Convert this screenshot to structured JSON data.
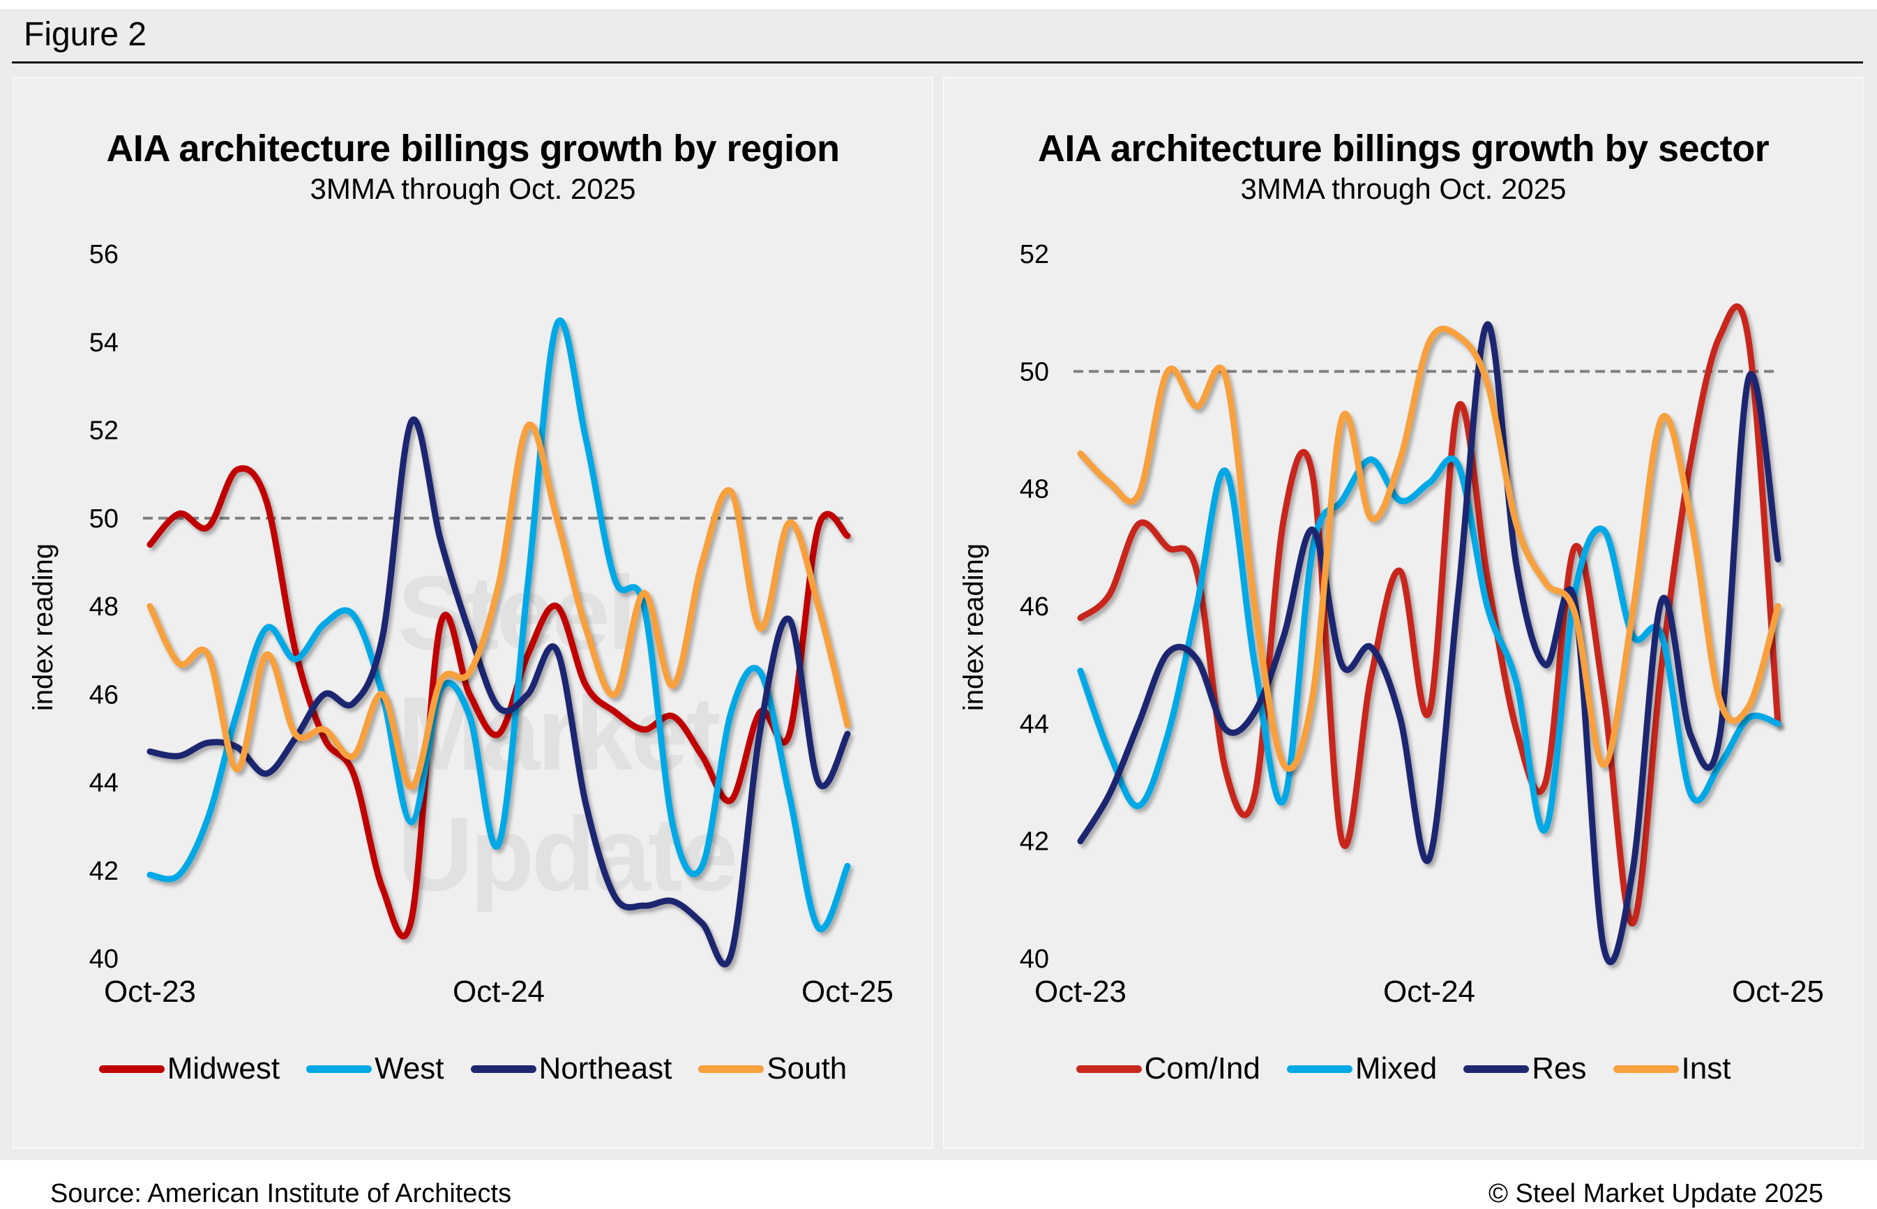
{
  "figure_label": "Figure 2",
  "source": "Source: American Institute of Architects",
  "copyright": "© Steel Market Update 2025",
  "watermark": "Steel Market Update",
  "chart_data": [
    {
      "type": "line",
      "title": "AIA architecture billings growth by region",
      "subtitle": "3MMA through Oct. 2025",
      "xlabel": "",
      "ylabel": "index reading",
      "ylim": [
        40,
        56
      ],
      "yticks": [
        40,
        42,
        44,
        46,
        48,
        50,
        52,
        54,
        56
      ],
      "x_tick_labels": [
        "Oct-23",
        "Oct-24",
        "Oct-25"
      ],
      "x": [
        "Oct-23",
        "Nov-23",
        "Dec-23",
        "Jan-24",
        "Feb-24",
        "Mar-24",
        "Apr-24",
        "May-24",
        "Jun-24",
        "Jul-24",
        "Aug-24",
        "Sep-24",
        "Oct-24",
        "Nov-24",
        "Dec-24",
        "Jan-25",
        "Feb-25",
        "Mar-25",
        "Apr-25",
        "May-25",
        "Jun-25",
        "Jul-25",
        "Aug-25",
        "Sep-25",
        "Oct-25"
      ],
      "reference_line": {
        "value": 50,
        "style": "dashed",
        "color": "#808080"
      },
      "grid": false,
      "legend_position": "bottom",
      "series": [
        {
          "name": "Midwest",
          "color": "#c00000",
          "values": [
            49.4,
            50.1,
            49.8,
            51.1,
            50.4,
            47.0,
            45.0,
            44.2,
            41.6,
            40.9,
            47.6,
            46.0,
            45.1,
            46.9,
            48.0,
            46.2,
            45.6,
            45.2,
            45.5,
            44.6,
            43.6,
            45.6,
            45.1,
            49.8,
            49.6
          ]
        },
        {
          "name": "West",
          "color": "#00a8e6",
          "values": [
            41.9,
            41.9,
            43.2,
            45.6,
            47.5,
            46.8,
            47.6,
            47.8,
            46.0,
            43.1,
            46.1,
            45.5,
            42.6,
            48.5,
            54.4,
            51.8,
            48.6,
            48.0,
            43.0,
            42.1,
            45.6,
            46.5,
            43.7,
            40.7,
            42.1
          ]
        },
        {
          "name": "Northeast",
          "color": "#1f286f",
          "values": [
            44.7,
            44.6,
            44.9,
            44.8,
            44.2,
            45.0,
            46.0,
            45.8,
            47.3,
            52.2,
            49.5,
            47.4,
            45.7,
            46.0,
            47.0,
            43.5,
            41.4,
            41.2,
            41.3,
            40.8,
            40.1,
            45.2,
            47.7,
            44.0,
            45.1
          ]
        },
        {
          "name": "South",
          "color": "#f7a03c",
          "values": [
            48.0,
            46.7,
            46.9,
            44.3,
            46.9,
            45.1,
            45.2,
            44.6,
            46.0,
            43.9,
            46.3,
            46.5,
            48.5,
            52.1,
            50.0,
            47.5,
            46.0,
            48.3,
            46.2,
            49.0,
            50.6,
            47.5,
            49.9,
            48.0,
            45.3
          ]
        }
      ]
    },
    {
      "type": "line",
      "title": "AIA architecture billings growth by sector",
      "subtitle": "3MMA through Oct. 2025",
      "xlabel": "",
      "ylabel": "index reading",
      "ylim": [
        40,
        52
      ],
      "yticks": [
        40,
        42,
        44,
        46,
        48,
        50,
        52
      ],
      "x_tick_labels": [
        "Oct-23",
        "Oct-24",
        "Oct-25"
      ],
      "x": [
        "Oct-23",
        "Nov-23",
        "Dec-23",
        "Jan-24",
        "Feb-24",
        "Mar-24",
        "Apr-24",
        "May-24",
        "Jun-24",
        "Jul-24",
        "Aug-24",
        "Sep-24",
        "Oct-24",
        "Nov-24",
        "Dec-24",
        "Jan-25",
        "Feb-25",
        "Mar-25",
        "Apr-25",
        "May-25",
        "Jun-25",
        "Jul-25",
        "Aug-25",
        "Sep-25",
        "Oct-25"
      ],
      "reference_line": {
        "value": 50,
        "style": "dashed",
        "color": "#808080"
      },
      "grid": false,
      "legend_position": "bottom",
      "series": [
        {
          "name": "Com/Ind",
          "color": "#c8281e",
          "values": [
            45.8,
            46.2,
            47.4,
            47.0,
            46.6,
            43.2,
            42.8,
            47.5,
            48.2,
            42.0,
            44.8,
            46.6,
            44.2,
            49.4,
            46.5,
            43.9,
            43.0,
            47.0,
            44.5,
            40.6,
            45.0,
            48.5,
            50.6,
            50.5,
            44.0
          ]
        },
        {
          "name": "Mixed",
          "color": "#00a8e6",
          "values": [
            44.9,
            43.5,
            42.6,
            43.8,
            46.0,
            48.3,
            45.0,
            42.7,
            47.0,
            47.8,
            48.5,
            47.8,
            48.1,
            48.4,
            46.0,
            44.7,
            42.2,
            46.2,
            47.3,
            45.5,
            45.5,
            42.8,
            43.3,
            44.1,
            44.0
          ]
        },
        {
          "name": "Res",
          "color": "#1f286f",
          "values": [
            42.0,
            42.8,
            44.0,
            45.2,
            45.1,
            43.9,
            44.2,
            45.5,
            47.3,
            45.0,
            45.3,
            44.1,
            41.7,
            46.2,
            50.8,
            46.7,
            45.0,
            46.1,
            40.2,
            41.5,
            46.1,
            43.8,
            43.8,
            49.9,
            46.8
          ]
        },
        {
          "name": "Inst",
          "color": "#f7a03c",
          "values": [
            48.6,
            48.1,
            47.9,
            50.0,
            49.4,
            49.9,
            46.0,
            43.3,
            44.5,
            49.2,
            47.5,
            48.5,
            50.5,
            50.6,
            49.8,
            47.4,
            46.4,
            45.9,
            43.3,
            45.9,
            49.2,
            47.5,
            44.4,
            44.3,
            46.0
          ]
        }
      ]
    }
  ]
}
